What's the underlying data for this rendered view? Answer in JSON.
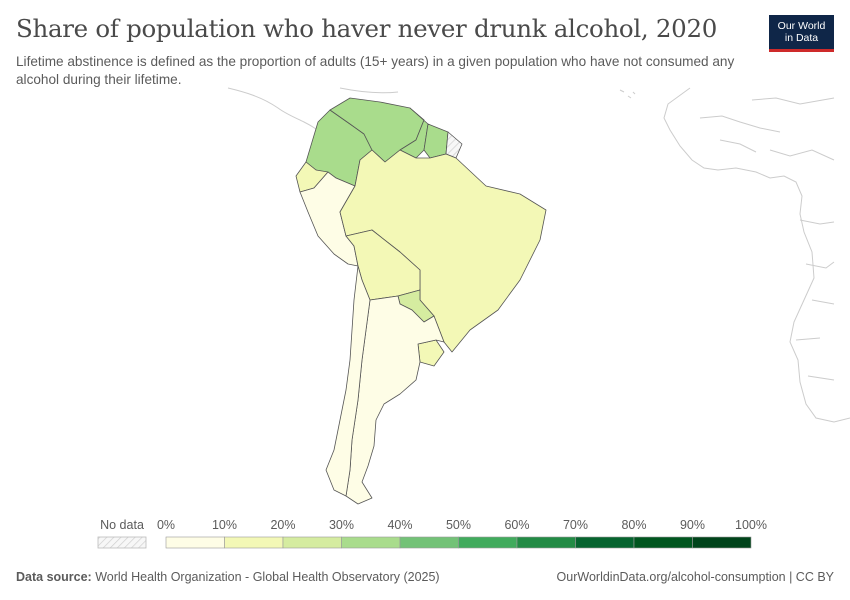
{
  "header": {
    "title": "Share of population who haver never drunk alcohol, 2020",
    "subtitle": "Lifetime abstinence is defined as the proportion of adults (15+ years) in a given population who have not consumed any alcohol during their lifetime.",
    "logo_line1": "Our World",
    "logo_line2": "in Data"
  },
  "legend": {
    "no_data_label": "No data",
    "bins": [
      "0%",
      "10%",
      "20%",
      "30%",
      "40%",
      "50%",
      "60%",
      "70%",
      "80%",
      "90%",
      "100%"
    ],
    "colors": [
      "#fefde6",
      "#f3f8b6",
      "#d5eca0",
      "#a9dc8c",
      "#73c277",
      "#41ab5d",
      "#238b45",
      "#06642f",
      "#00561f",
      "#00441b"
    ]
  },
  "map_data": {
    "region": "South America",
    "countries": [
      {
        "name": "Colombia",
        "bin": 3,
        "color": "#a9dc8c"
      },
      {
        "name": "Venezuela",
        "bin": 3,
        "color": "#a9dc8c"
      },
      {
        "name": "Guyana",
        "bin": 3,
        "color": "#a9dc8c"
      },
      {
        "name": "Suriname",
        "bin": 3,
        "color": "#a9dc8c"
      },
      {
        "name": "French Guiana",
        "bin": null,
        "color": "no-data"
      },
      {
        "name": "Ecuador",
        "bin": 1,
        "color": "#f3f8b6"
      },
      {
        "name": "Peru",
        "bin": 0,
        "color": "#fefde6"
      },
      {
        "name": "Brazil",
        "bin": 1,
        "color": "#f3f8b6"
      },
      {
        "name": "Bolivia",
        "bin": 1,
        "color": "#f3f8b6"
      },
      {
        "name": "Paraguay",
        "bin": 2,
        "color": "#d5eca0"
      },
      {
        "name": "Chile",
        "bin": 0,
        "color": "#fefde6"
      },
      {
        "name": "Argentina",
        "bin": 0,
        "color": "#fefde6"
      },
      {
        "name": "Uruguay",
        "bin": 1,
        "color": "#f3f8b6"
      }
    ]
  },
  "footer": {
    "source_label": "Data source:",
    "source_text": "World Health Organization - Global Health Observatory (2025)",
    "url_text": "OurWorldinData.org/alcohol-consumption | CC BY"
  }
}
